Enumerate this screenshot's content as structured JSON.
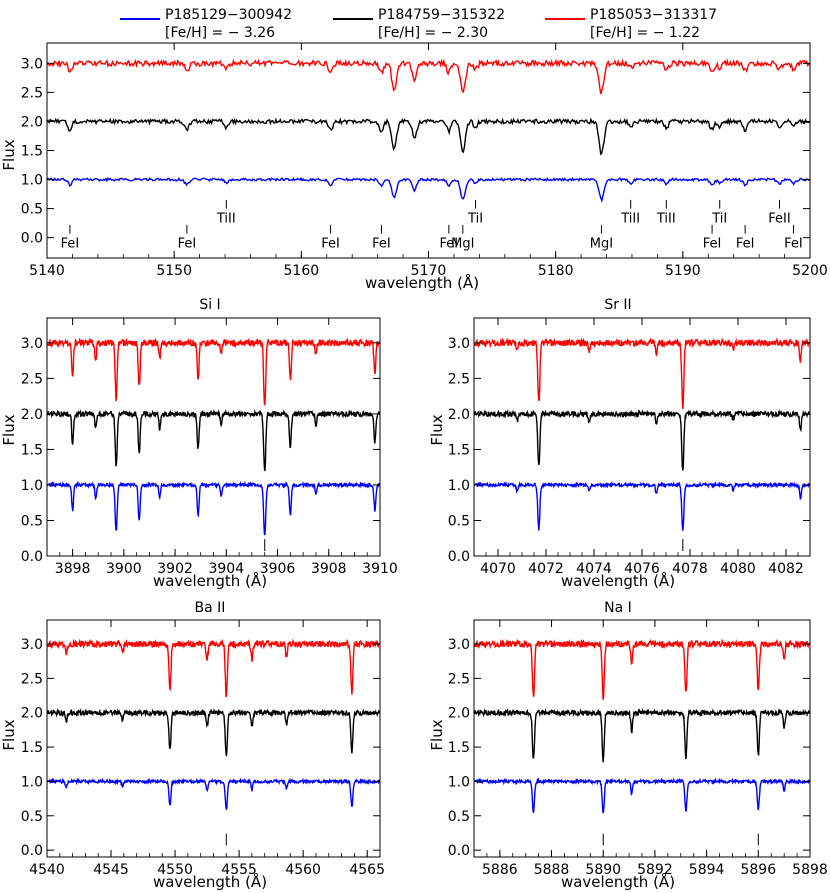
{
  "legend": [
    {
      "name": "P185129−300942",
      "feh": "[Fe/H] = − 3.26",
      "color": "#0000ff"
    },
    {
      "name": "P184759−315322",
      "feh": "[Fe/H] = − 2.30",
      "color": "#000000"
    },
    {
      "name": "P185053−313317",
      "feh": "[Fe/H] = − 1.22",
      "color": "#ff0000"
    }
  ],
  "chart_data": [
    {
      "id": "main",
      "type": "line",
      "title": "",
      "xlabel": "wavelength (Å)",
      "ylabel": "Flux",
      "xlim": [
        5140,
        5200
      ],
      "ylim": [
        -0.35,
        3.35
      ],
      "xticks": [
        5140,
        5150,
        5160,
        5170,
        5180,
        5190,
        5200
      ],
      "yticks": [
        0.0,
        0.5,
        1.0,
        1.5,
        2.0,
        2.5,
        3.0
      ],
      "series_offsets": {
        "blue": 1.0,
        "black": 2.0,
        "red": 3.0
      },
      "lines_depth": {
        "blue": 0.3,
        "black": 0.48,
        "red": 0.45
      },
      "lines": [
        {
          "x": 5141.8,
          "label": "FeI",
          "level": "low",
          "strength": 0.3
        },
        {
          "x": 5151.0,
          "label": "FeI",
          "level": "low",
          "strength": 0.3
        },
        {
          "x": 5154.1,
          "label": "TiII",
          "level": "high",
          "strength": 0.2
        },
        {
          "x": 5162.3,
          "label": "FeI",
          "level": "low",
          "strength": 0.3
        },
        {
          "x": 5166.3,
          "label": "FeI",
          "level": "low",
          "strength": 0.4
        },
        {
          "x": 5167.3,
          "label": "",
          "level": "none",
          "strength": 1.0
        },
        {
          "x": 5168.9,
          "label": "",
          "level": "none",
          "strength": 0.6
        },
        {
          "x": 5171.6,
          "label": "FeI",
          "level": "low",
          "strength": 0.35
        },
        {
          "x": 5172.7,
          "label": "MgI",
          "level": "low",
          "strength": 1.1
        },
        {
          "x": 5173.7,
          "label": "TiI",
          "level": "high",
          "strength": 0.2
        },
        {
          "x": 5183.6,
          "label": "MgI",
          "level": "low",
          "strength": 1.15
        },
        {
          "x": 5185.9,
          "label": "TiII",
          "level": "high",
          "strength": 0.2
        },
        {
          "x": 5188.7,
          "label": "TiII",
          "level": "high",
          "strength": 0.25
        },
        {
          "x": 5192.3,
          "label": "FeI",
          "level": "low",
          "strength": 0.3
        },
        {
          "x": 5192.9,
          "label": "TiI",
          "level": "high",
          "strength": 0.2
        },
        {
          "x": 5194.9,
          "label": "FeI",
          "level": "low",
          "strength": 0.3
        },
        {
          "x": 5197.6,
          "label": "FeII",
          "level": "high",
          "strength": 0.25
        },
        {
          "x": 5198.7,
          "label": "FeI",
          "level": "low",
          "strength": 0.2
        }
      ]
    },
    {
      "id": "si",
      "type": "line",
      "title": "Si I",
      "xlabel": "wavelength (Å)",
      "ylabel": "Flux",
      "xlim": [
        3897,
        3910
      ],
      "ylim": [
        0.0,
        3.35
      ],
      "xticks": [
        3898,
        3900,
        3902,
        3904,
        3906,
        3908,
        3910
      ],
      "yticks": [
        0.0,
        0.5,
        1.0,
        1.5,
        2.0,
        2.5,
        3.0
      ],
      "marker_x": 3905.5,
      "series_offsets": {
        "blue": 1.0,
        "black": 2.0,
        "red": 3.0
      },
      "lines_depth": {
        "blue": 0.72,
        "black": 0.82,
        "red": 0.88
      },
      "lines": [
        {
          "x": 3898.0,
          "strength": 0.5
        },
        {
          "x": 3899.7,
          "strength": 0.9
        },
        {
          "x": 3900.6,
          "strength": 0.7
        },
        {
          "x": 3902.9,
          "strength": 0.6
        },
        {
          "x": 3905.5,
          "strength": 1.0
        },
        {
          "x": 3906.5,
          "strength": 0.6
        },
        {
          "x": 3898.9,
          "strength": 0.25
        },
        {
          "x": 3901.4,
          "strength": 0.25
        },
        {
          "x": 3903.8,
          "strength": 0.2
        },
        {
          "x": 3907.5,
          "strength": 0.2
        },
        {
          "x": 3909.8,
          "strength": 0.5
        }
      ]
    },
    {
      "id": "sr",
      "type": "line",
      "title": "Sr II",
      "xlabel": "wavelength (Å)",
      "ylabel": "Flux",
      "xlim": [
        4069,
        4083
      ],
      "ylim": [
        0.0,
        3.35
      ],
      "xticks": [
        4070,
        4072,
        4074,
        4076,
        4078,
        4080,
        4082
      ],
      "yticks": [
        0.0,
        0.5,
        1.0,
        1.5,
        2.0,
        2.5,
        3.0
      ],
      "marker_x": 4077.7,
      "series_offsets": {
        "blue": 1.0,
        "black": 2.0,
        "red": 3.0
      },
      "lines_depth": {
        "blue": 0.62,
        "black": 0.75,
        "red": 0.85
      },
      "lines": [
        {
          "x": 4071.7,
          "strength": 1.0
        },
        {
          "x": 4077.7,
          "strength": 1.05
        },
        {
          "x": 4076.6,
          "strength": 0.2
        },
        {
          "x": 4073.8,
          "strength": 0.15
        },
        {
          "x": 4070.8,
          "strength": 0.15
        },
        {
          "x": 4079.8,
          "strength": 0.12
        },
        {
          "x": 4082.6,
          "strength": 0.3
        }
      ]
    },
    {
      "id": "ba",
      "type": "line",
      "title": "Ba II",
      "xlabel": "wavelength (Å)",
      "ylabel": "Flux",
      "xlim": [
        4540,
        4566
      ],
      "ylim": [
        -0.1,
        3.35
      ],
      "xticks": [
        4540,
        4545,
        4550,
        4555,
        4560,
        4565
      ],
      "yticks": [
        0.0,
        0.5,
        1.0,
        1.5,
        2.0,
        2.5,
        3.0
      ],
      "marker_x": 4554.0,
      "series_offsets": {
        "blue": 1.0,
        "black": 2.0,
        "red": 3.0
      },
      "lines_depth": {
        "blue": 0.42,
        "black": 0.65,
        "red": 0.78
      },
      "lines": [
        {
          "x": 4549.6,
          "strength": 0.85
        },
        {
          "x": 4554.0,
          "strength": 1.0
        },
        {
          "x": 4563.8,
          "strength": 0.9
        },
        {
          "x": 4552.5,
          "strength": 0.3
        },
        {
          "x": 4558.7,
          "strength": 0.25
        },
        {
          "x": 4556.0,
          "strength": 0.3
        },
        {
          "x": 4545.9,
          "strength": 0.2
        },
        {
          "x": 4541.5,
          "strength": 0.2
        }
      ]
    },
    {
      "id": "na",
      "type": "line",
      "title": "Na I",
      "xlabel": "wavelength (Å)",
      "ylabel": "Flux",
      "xlim": [
        5885,
        5898
      ],
      "ylim": [
        -0.1,
        3.35
      ],
      "xticks": [
        5886,
        5888,
        5890,
        5892,
        5894,
        5896,
        5898
      ],
      "yticks": [
        0.0,
        0.5,
        1.0,
        1.5,
        2.0,
        2.5,
        3.0
      ],
      "marker_x": [
        5890.0,
        5896.0
      ],
      "series_offsets": {
        "blue": 1.0,
        "black": 2.0,
        "red": 3.0
      },
      "lines_depth": {
        "blue": 0.45,
        "black": 0.7,
        "red": 0.78
      },
      "lines": [
        {
          "x": 5887.3,
          "strength": 1.0
        },
        {
          "x": 5890.0,
          "strength": 1.0
        },
        {
          "x": 5893.2,
          "strength": 0.95
        },
        {
          "x": 5896.0,
          "strength": 0.9
        },
        {
          "x": 5891.1,
          "strength": 0.4
        },
        {
          "x": 5897.0,
          "strength": 0.3
        }
      ]
    }
  ]
}
